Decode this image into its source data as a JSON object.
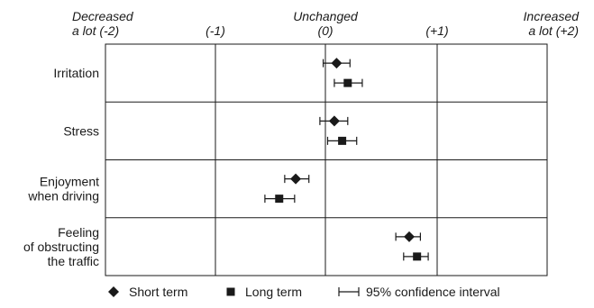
{
  "chart_data": {
    "type": "scatter",
    "orientation": "horizontal",
    "xlim": [
      -2,
      2
    ],
    "x_ticks": [
      {
        "value": -2,
        "lines": [
          "Decreased",
          "a lot (-2)"
        ],
        "align": "left"
      },
      {
        "value": -1,
        "lines": [
          "(-1)"
        ],
        "align": "center"
      },
      {
        "value": 0,
        "lines": [
          "Unchanged",
          "(0)"
        ],
        "align": "center"
      },
      {
        "value": 1,
        "lines": [
          "(+1)"
        ],
        "align": "center"
      },
      {
        "value": 2,
        "lines": [
          "Increased",
          "a lot (+2)"
        ],
        "align": "right"
      }
    ],
    "categories": [
      {
        "lines": [
          "Irritation"
        ]
      },
      {
        "lines": [
          "Stress"
        ]
      },
      {
        "lines": [
          "Enjoyment",
          "when driving"
        ]
      },
      {
        "lines": [
          "Feeling",
          "of obstructing",
          "the traffic"
        ]
      }
    ],
    "series": [
      {
        "name": "Short term",
        "marker": "diamond",
        "values": [
          {
            "mean": 0.1,
            "ci": [
              -0.02,
              0.22
            ]
          },
          {
            "mean": 0.08,
            "ci": [
              -0.05,
              0.2
            ]
          },
          {
            "mean": -0.27,
            "ci": [
              -0.37,
              -0.15
            ]
          },
          {
            "mean": 0.75,
            "ci": [
              0.63,
              0.85
            ]
          }
        ]
      },
      {
        "name": "Long term",
        "marker": "square",
        "values": [
          {
            "mean": 0.2,
            "ci": [
              0.08,
              0.33
            ]
          },
          {
            "mean": 0.15,
            "ci": [
              0.02,
              0.28
            ]
          },
          {
            "mean": -0.42,
            "ci": [
              -0.55,
              -0.28
            ]
          },
          {
            "mean": 0.82,
            "ci": [
              0.7,
              0.92
            ]
          }
        ]
      }
    ],
    "legend": {
      "position": "bottom",
      "items": [
        {
          "marker": "diamond",
          "label": "Short term"
        },
        {
          "marker": "square",
          "label": "Long term"
        },
        {
          "marker": "errorbar",
          "label": "95% confidence interval"
        }
      ]
    },
    "grid": true
  },
  "colors": {
    "ink": "#1a1a1a",
    "background": "#ffffff"
  }
}
